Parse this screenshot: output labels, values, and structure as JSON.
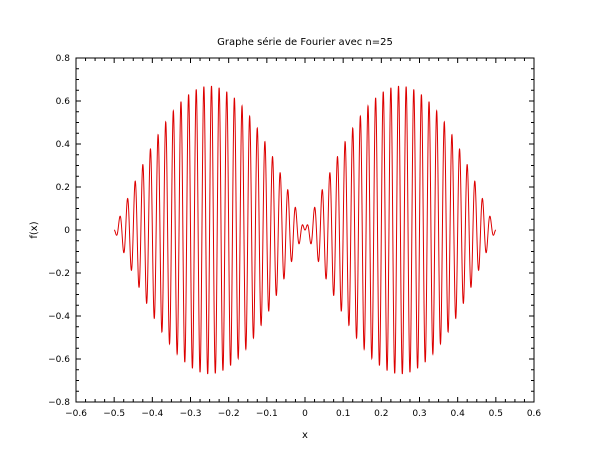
{
  "chart_data": {
    "type": "line",
    "title": "Graphe série de Fourier avec n=25",
    "xlabel": "x",
    "ylabel": "f(x)",
    "xlim": [
      -0.6,
      0.6
    ],
    "ylim": [
      -0.8,
      0.8
    ],
    "grid": false,
    "xticks": [
      -0.6,
      -0.5,
      -0.4,
      -0.3,
      -0.2,
      -0.1,
      0,
      0.1,
      0.2,
      0.3,
      0.4,
      0.5,
      0.6
    ],
    "xtick_labels": [
      "−0.6",
      "−0.5",
      "−0.4",
      "−0.3",
      "−0.2",
      "−0.1",
      "0",
      "0.1",
      "0.2",
      "0.3",
      "0.4",
      "0.5",
      "0.6"
    ],
    "yticks": [
      -0.8,
      -0.6,
      -0.4,
      -0.2,
      0,
      0.2,
      0.4,
      0.6,
      0.8
    ],
    "ytick_labels": [
      "−0.8",
      "−0.6",
      "−0.4",
      "−0.2",
      "0",
      "0.2",
      "0.4",
      "0.6",
      "0.8"
    ],
    "series": [
      {
        "color": "#dd0000",
        "x_range": [
          -0.5,
          0.5
        ],
        "envelope_peak": 0.67,
        "envelope_peaks_at": [
          -0.25,
          0.25
        ],
        "zero_at": [
          -0.5,
          0,
          0.5
        ],
        "oscillation_frequency": 50
      }
    ]
  }
}
